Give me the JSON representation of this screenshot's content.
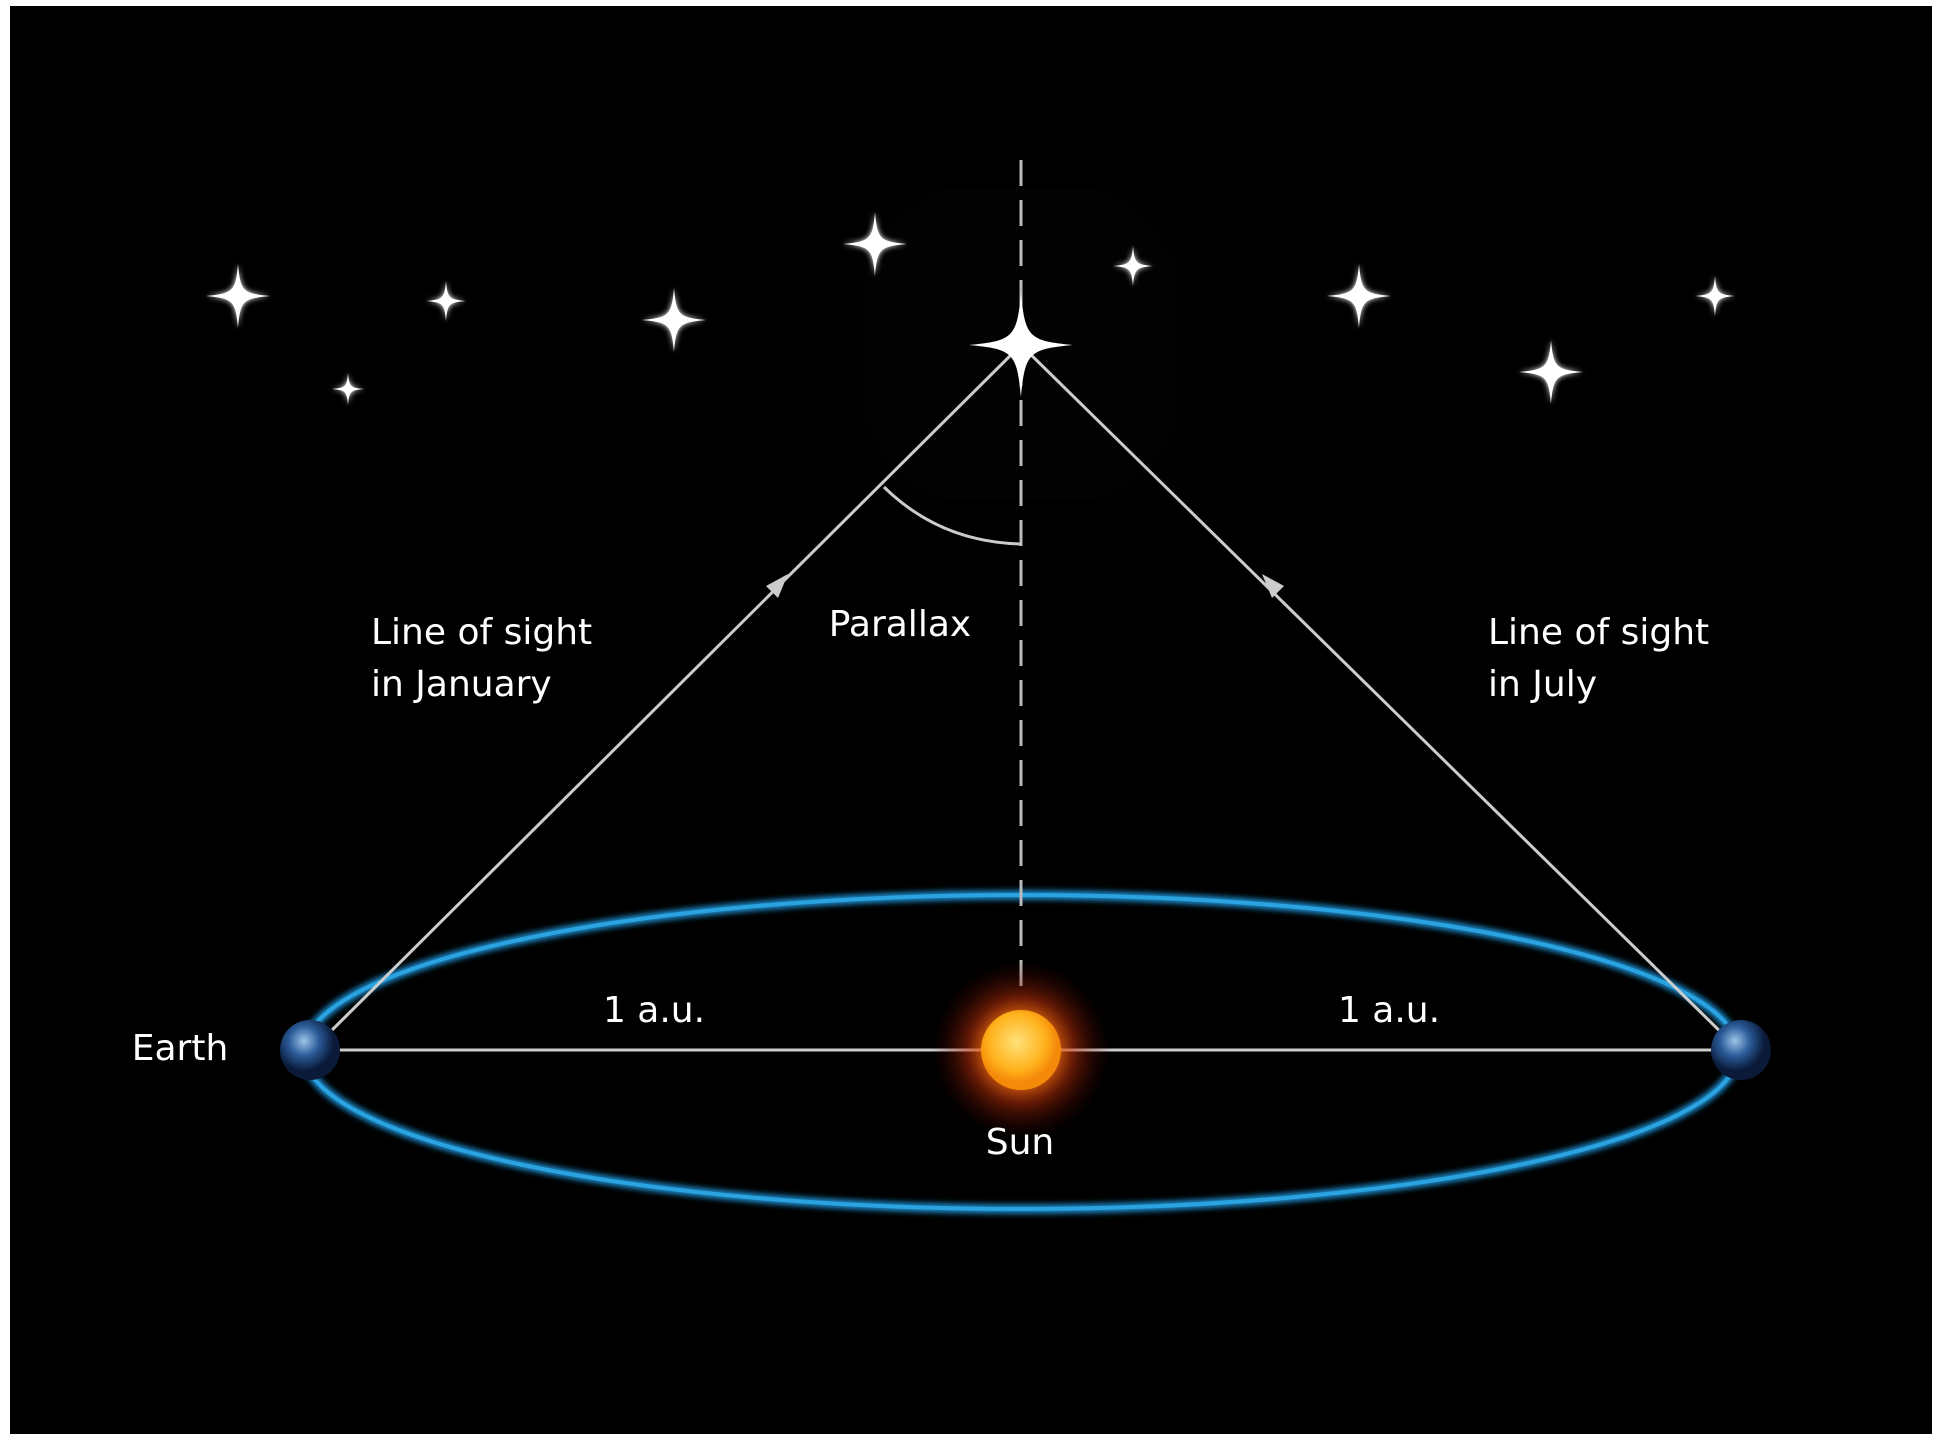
{
  "labels": {
    "line_of_sight_january": [
      "Line of sight",
      "in January"
    ],
    "line_of_sight_july": [
      "Line of sight",
      "in July"
    ],
    "parallax": "Parallax",
    "au_left": "1 a.u.",
    "au_right": "1 a.u.",
    "earth": "Earth",
    "sun": "Sun"
  }
}
